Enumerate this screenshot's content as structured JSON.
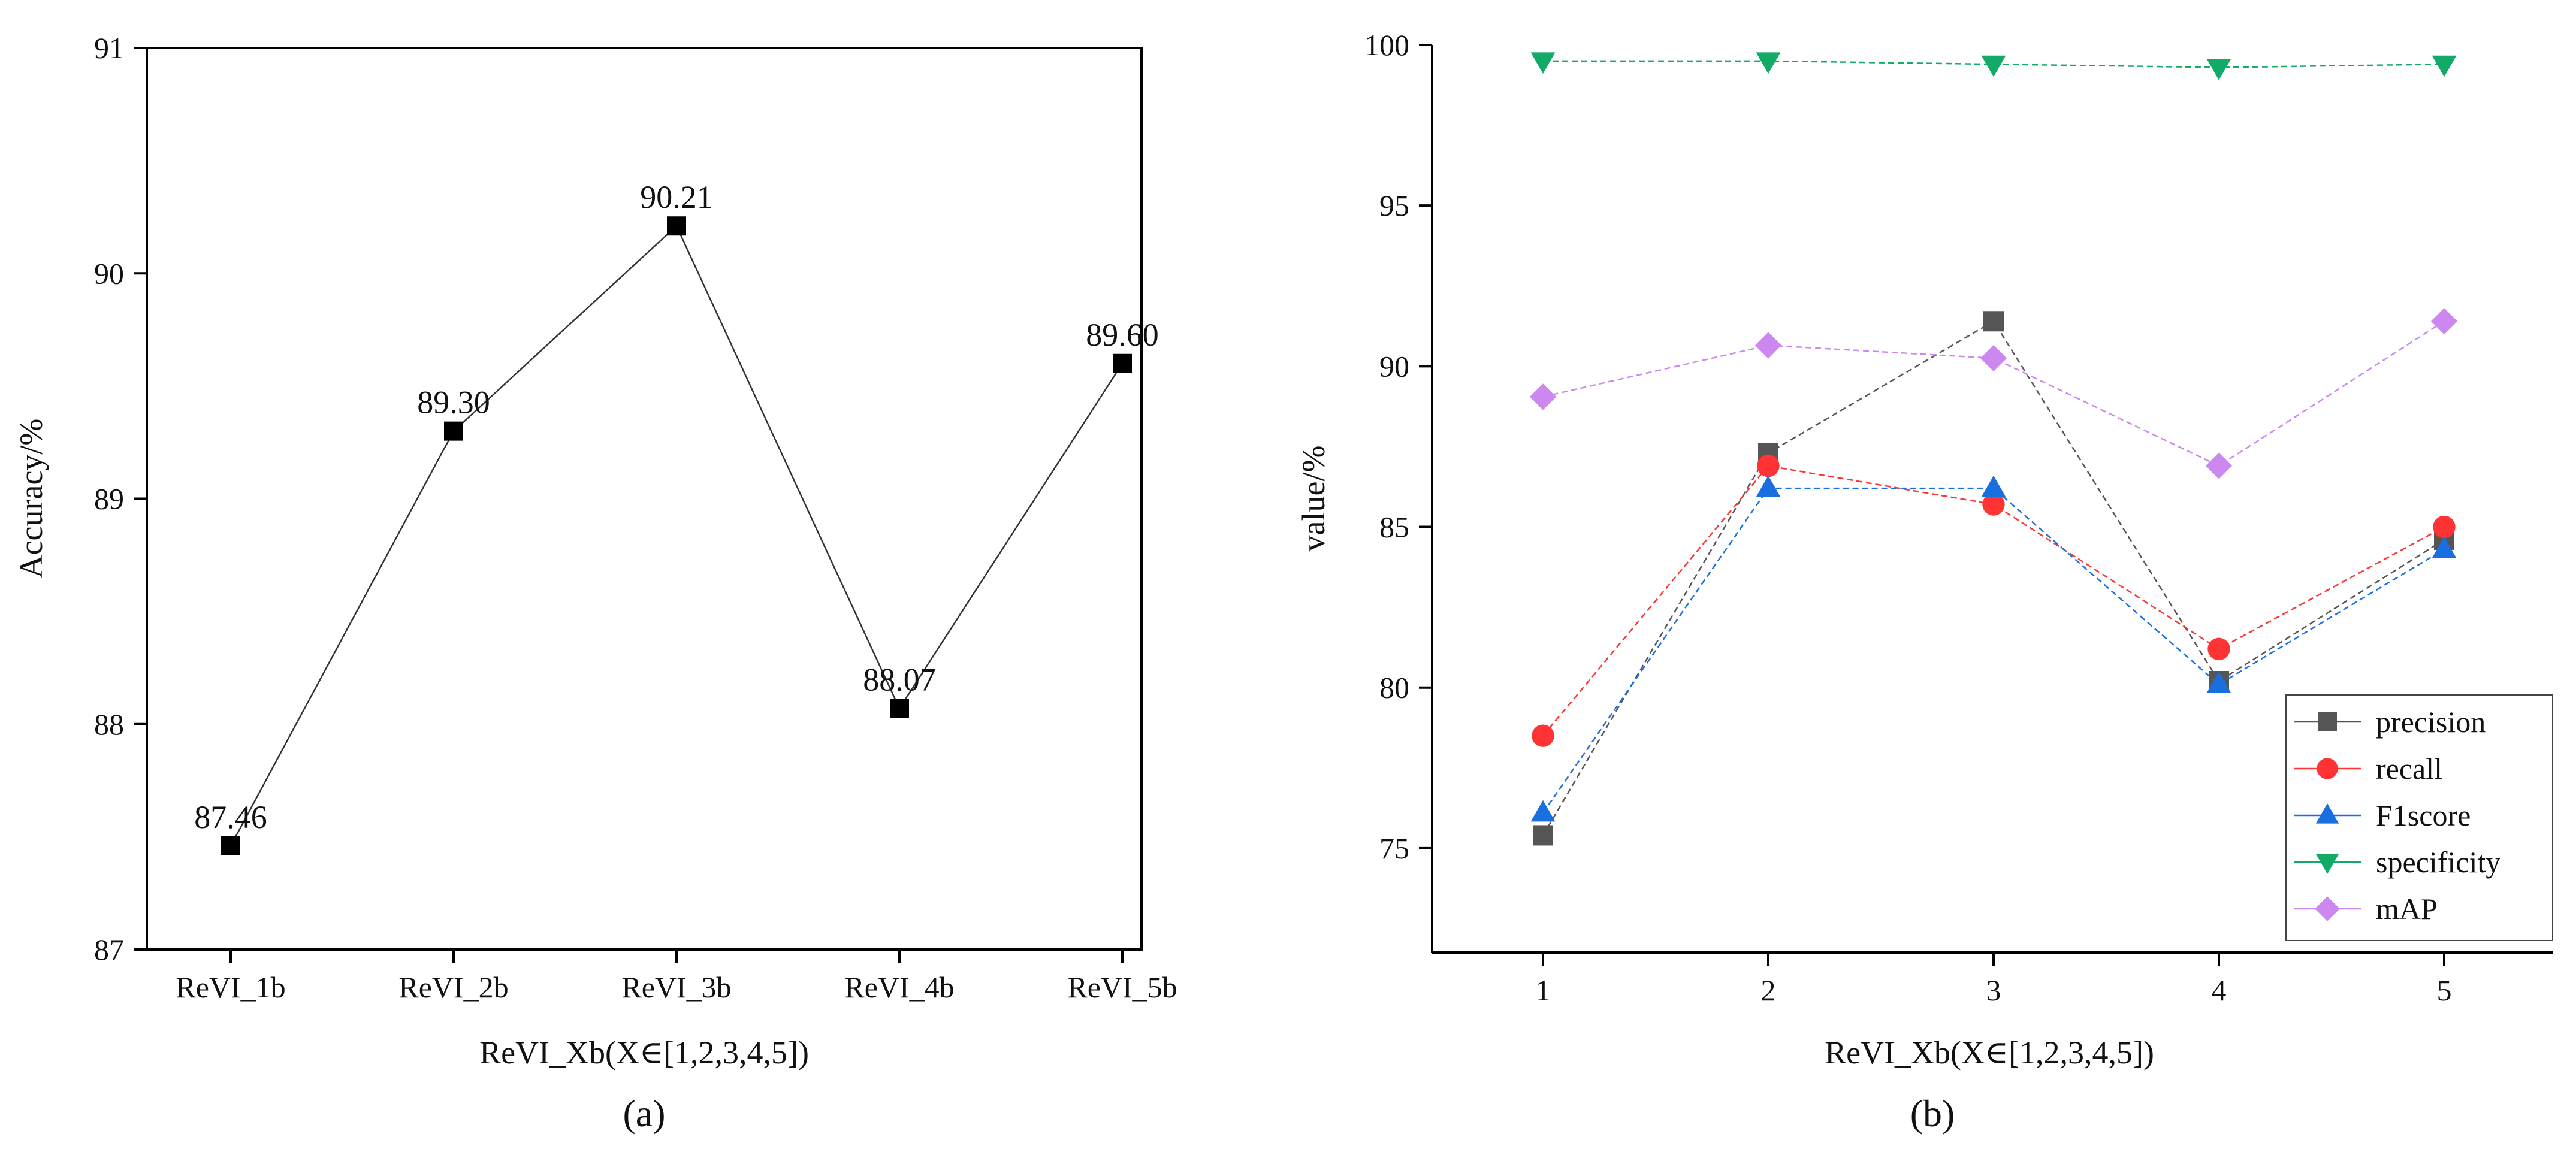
{
  "chart_data": [
    {
      "type": "line",
      "panel_label": "(a)",
      "title": "",
      "xlabel": "ReVI_Xb(X∈[1,2,3,4,5])",
      "ylabel": "Accuracy/%",
      "categories": [
        "ReVI_1b",
        "ReVI_2b",
        "ReVI_3b",
        "ReVI_4b",
        "ReVI_5b"
      ],
      "values": [
        87.46,
        89.3,
        90.21,
        88.07,
        89.6
      ],
      "data_labels": [
        "87.46",
        "89.30",
        "90.21",
        "88.07",
        "89.60"
      ],
      "ylim": [
        87,
        91
      ],
      "yticks": [
        87,
        88,
        89,
        90,
        91
      ],
      "grid": false,
      "color": "#000000"
    },
    {
      "type": "line",
      "panel_label": "(b)",
      "title": "",
      "xlabel": "ReVI_Xb(X∈[1,2,3,4,5])",
      "ylabel": "value/%",
      "x": [
        1,
        2,
        3,
        4,
        5
      ],
      "ylim": [
        72.5,
        100
      ],
      "yticks": [
        75,
        80,
        85,
        90,
        95,
        100
      ],
      "grid": false,
      "legend_position": "bottom-right",
      "series": [
        {
          "name": "precision",
          "values": [
            75.4,
            87.3,
            91.4,
            80.2,
            84.6
          ],
          "color": "#555555",
          "marker": "square"
        },
        {
          "name": "recall",
          "values": [
            78.5,
            86.9,
            85.7,
            81.2,
            85.0
          ],
          "color": "#ff3333",
          "marker": "circle"
        },
        {
          "name": "F1score",
          "values": [
            76.1,
            86.2,
            86.2,
            80.1,
            84.3
          ],
          "color": "#1a6fe0",
          "marker": "triangle-up"
        },
        {
          "name": "specificity",
          "values": [
            99.5,
            99.5,
            99.4,
            99.3,
            99.4
          ],
          "color": "#11aa66",
          "marker": "triangle-down"
        },
        {
          "name": "mAP",
          "values": [
            89.05,
            90.65,
            90.25,
            86.9,
            91.4
          ],
          "color": "#cc88ee",
          "marker": "diamond"
        }
      ]
    }
  ]
}
